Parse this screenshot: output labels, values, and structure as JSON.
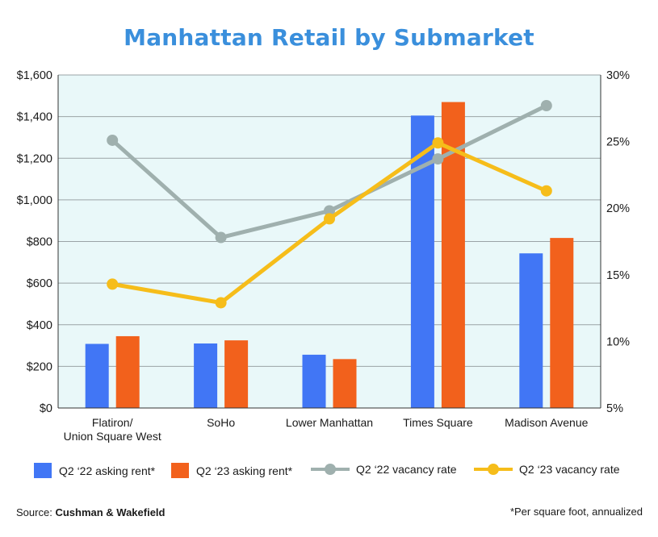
{
  "title": "Manhattan Retail by Submarket",
  "source_label": "Source:",
  "source_name": "Cushman & Wakefield",
  "footnote": "*Per square foot, annualized",
  "colors": {
    "title": "#3a8fdc",
    "q22_rent": "#4176f5",
    "q23_rent": "#f2611c",
    "q22_vacancy": "#9fb0ae",
    "q23_vacancy": "#f6bd1a",
    "plot_bg": "#e9f8f9",
    "grid": "#9aa3a6"
  },
  "legend": [
    {
      "label": "Q2 ‘22 asking rent*",
      "kind": "bar",
      "color": "#4176f5"
    },
    {
      "label": "Q2 ‘23 asking rent*",
      "kind": "bar",
      "color": "#f2611c"
    },
    {
      "label": "Q2 ‘22 vacancy rate",
      "kind": "line",
      "color": "#9fb0ae"
    },
    {
      "label": "Q2 ‘23 vacancy rate",
      "kind": "line",
      "color": "#f6bd1a"
    }
  ],
  "chart_data": {
    "type": "bar",
    "title": "Manhattan Retail by Submarket",
    "categories": [
      [
        "Flatiron/",
        "Union Square West"
      ],
      [
        "SoHo"
      ],
      [
        "Lower Manhattan"
      ],
      [
        "Times Square"
      ],
      [
        "Madison Avenue"
      ]
    ],
    "series": [
      {
        "name": "Q2 ‘22 asking rent*",
        "type": "bar",
        "axis": "left",
        "values": [
          308,
          310,
          256,
          1405,
          743
        ]
      },
      {
        "name": "Q2 ‘23 asking rent*",
        "type": "bar",
        "axis": "left",
        "values": [
          345,
          325,
          235,
          1470,
          817
        ]
      },
      {
        "name": "Q2 ‘22 vacancy rate",
        "type": "line",
        "axis": "right",
        "values": [
          25.1,
          17.8,
          19.8,
          23.7,
          27.7
        ]
      },
      {
        "name": "Q2 ‘23 vacancy rate",
        "type": "line",
        "axis": "right",
        "values": [
          14.3,
          12.9,
          19.2,
          24.9,
          21.3
        ]
      }
    ],
    "y_left": {
      "ylim": [
        0,
        1600
      ],
      "ticks": [
        "$0",
        "$200",
        "$400",
        "$600",
        "$800",
        "$1,000",
        "$1,200",
        "$1,400",
        "$1,600"
      ]
    },
    "y_right": {
      "ylim": [
        5,
        30
      ],
      "ticks": [
        "5%",
        "10%",
        "15%",
        "20%",
        "25%",
        "30%"
      ]
    },
    "grid": true,
    "legend_position": "bottom"
  }
}
